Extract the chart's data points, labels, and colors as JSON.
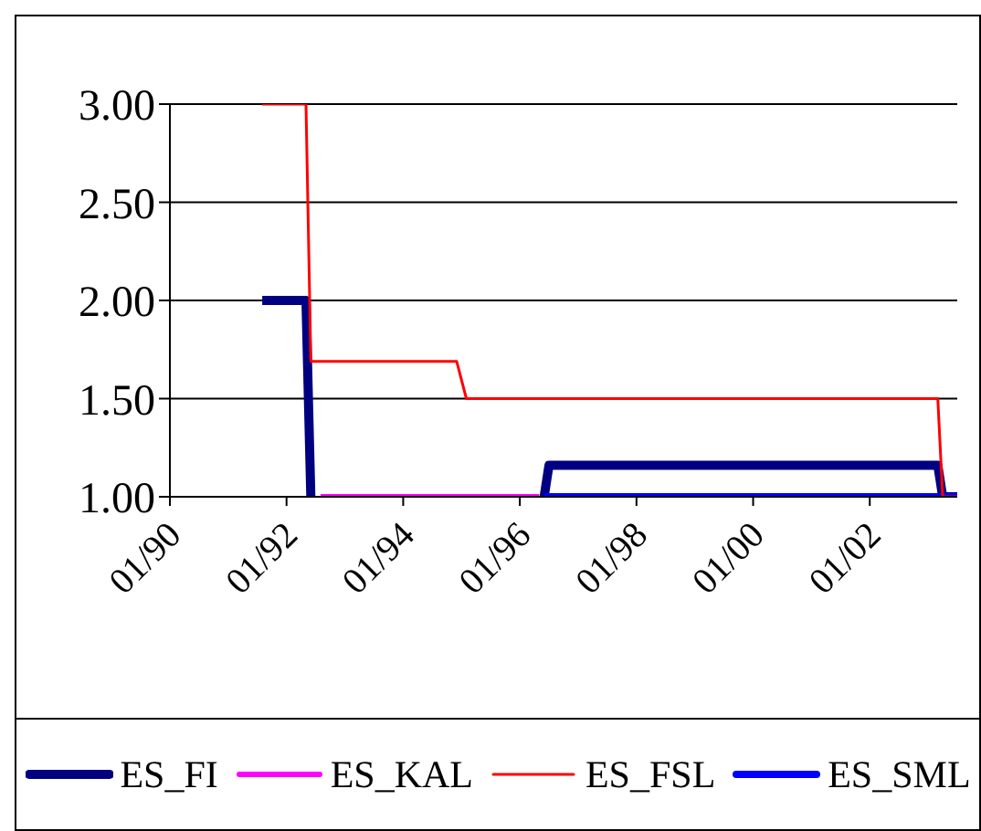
{
  "chart_data": {
    "type": "line",
    "series": [
      {
        "name": "ES_FI",
        "color": "#000080",
        "x": [
          "1991-08",
          "1992-05",
          "1992-06",
          "1992-07",
          "1996-06",
          "1996-07",
          "2003-03",
          "2003-04",
          "2003-07"
        ],
        "values": [
          2.0,
          2.0,
          1.0,
          null,
          1.0,
          1.16,
          1.16,
          1.0,
          1.0
        ]
      },
      {
        "name": "ES_KAL",
        "color": "#ff00ff",
        "x": [
          "1992-08",
          "1996-05"
        ],
        "values": [
          1.0,
          1.0
        ]
      },
      {
        "name": "ES_FSL",
        "color": "#ff0000",
        "x": [
          "1991-08",
          "1992-05",
          "1992-06",
          "1994-12",
          "1995-02",
          "2003-03",
          "2003-04",
          "2003-07"
        ],
        "values": [
          3.0,
          3.0,
          1.69,
          1.69,
          1.5,
          1.5,
          1.0,
          1.0
        ]
      },
      {
        "name": "ES_SML",
        "color": "#0000ff",
        "x": [
          "1996-06",
          "2003-07"
        ],
        "values": [
          1.0,
          1.0
        ]
      }
    ],
    "xlim": [
      "1990-01",
      "2003-07"
    ],
    "xticks": [
      {
        "value": "1990-01",
        "label": "01/90"
      },
      {
        "value": "1992-01",
        "label": "01/92"
      },
      {
        "value": "1994-01",
        "label": "01/94"
      },
      {
        "value": "1996-01",
        "label": "01/96"
      },
      {
        "value": "1998-01",
        "label": "01/98"
      },
      {
        "value": "2000-01",
        "label": "01/00"
      },
      {
        "value": "2002-01",
        "label": "01/02"
      }
    ],
    "ylim": [
      1,
      3
    ],
    "yticks": [
      {
        "value": 1,
        "label": "1.00"
      },
      {
        "value": 1.5,
        "label": "1.50"
      },
      {
        "value": 2,
        "label": "2.00"
      },
      {
        "value": 2.5,
        "label": "2.50"
      },
      {
        "value": 3,
        "label": "3.00"
      }
    ],
    "grid": "y",
    "legend": "bottom",
    "marker": "none",
    "line_style": "solid"
  }
}
